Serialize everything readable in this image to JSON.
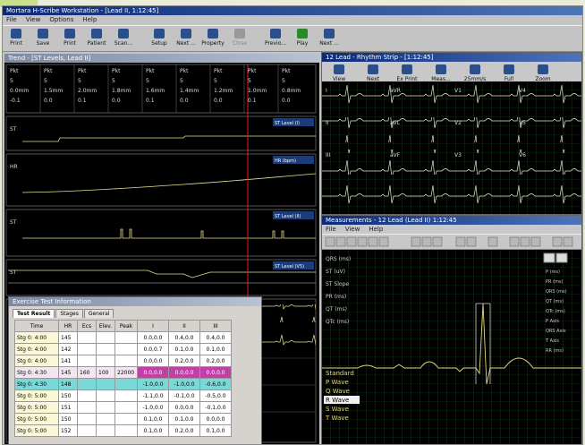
{
  "window": {
    "title": "Mortara H-Scribe Workstation - [Lead II, 1:12:45]",
    "menu": [
      "File",
      "View",
      "Options",
      "Help"
    ],
    "toolbar": [
      "Print",
      "Save",
      "Print",
      "Patient",
      "Scan...",
      "Setup",
      "Next ...",
      "Property",
      "Close",
      "Previo...",
      "Play",
      "Next ..."
    ]
  },
  "trend_pane": {
    "title": "Trend - [ST Levels, Lead II]",
    "columns": [
      [
        "Pkt",
        "5",
        "0.0mm",
        "-0.1"
      ],
      [
        "Pkt",
        "5",
        "1.5mm",
        "0.0"
      ],
      [
        "Pkt",
        "5",
        "2.0mm",
        "0.1"
      ],
      [
        "Pkt",
        "5",
        "1.8mm",
        "0.0"
      ],
      [
        "Pkt",
        "5",
        "1.6mm",
        "0.1"
      ],
      [
        "Pkt",
        "5",
        "1.4mm",
        "0.0"
      ],
      [
        "Pkt",
        "5",
        "1.2mm",
        "0.0"
      ],
      [
        "Pkt",
        "5",
        "1.0mm",
        "0.1"
      ],
      [
        "Pkt",
        "5",
        "0.8mm",
        "0.0"
      ]
    ],
    "panel_tags": [
      "ST Level (I)",
      "HR (bpm)",
      "ST Level (II)",
      "ST Level (V5)"
    ],
    "panel_labels": [
      "ST",
      "HR",
      "ST",
      "ST"
    ]
  },
  "rhythm_window": {
    "title": "12 Lead - Rhythm Strip - [1:12:45]",
    "toolbar": [
      "View",
      "Next",
      "Ex Print",
      "Meas...",
      "25mm/s",
      "Full",
      "Zoom"
    ],
    "leads": [
      "I",
      "aVR",
      "V1",
      "V4",
      "II",
      "aVL",
      "V2",
      "V5",
      "III",
      "aVF",
      "V3",
      "V6"
    ]
  },
  "measurements_window": {
    "title": "Measurements - 12 Lead (Lead II) 1:12:45",
    "menu": [
      "File",
      "View",
      "Help"
    ],
    "left_labels": [
      "QRS (ms)",
      "ST (uV)",
      "ST Slope",
      "PR (ms)",
      "QT (ms)",
      "QTc (ms)"
    ],
    "wave_list": [
      "Standard",
      "P Wave",
      "Q Wave",
      "R Wave",
      "S Wave",
      "T Wave"
    ],
    "selected_wave": 3,
    "right_labels": [
      "P (ms)",
      "PR (ms)",
      "QRS (ms)",
      "QT (ms)",
      "QTc (ms)",
      "P Axis",
      "QRS Axis",
      "T Axis",
      "RR (ms)"
    ]
  },
  "episode_dialog": {
    "title": "Exercise Test Information",
    "tabs": [
      "Test Result",
      "Stages",
      "General"
    ],
    "columns": [
      "Time",
      "HR",
      "Ecs",
      "Elev.",
      "Peak",
      "I",
      "II",
      "III"
    ],
    "rows": [
      [
        "Stg 0: 4:00",
        "145",
        null,
        null,
        null,
        "0.0,0.0",
        "0.4,0.0",
        "0.4,0.0"
      ],
      [
        "Stg 0: 4:00",
        "142",
        null,
        null,
        null,
        "0.0,0.7",
        "0.1,0.0",
        "0.1,0.0"
      ],
      [
        "Stg 0: 4:00",
        "141",
        null,
        null,
        null,
        "0.0,0.0",
        "0.2,0.0",
        "0.2,0.0"
      ],
      [
        "Stg 0: 4:30",
        "145",
        "160",
        "100",
        "22000",
        "0.0,0.0",
        "0.0,0.0",
        "0.0,0.0"
      ],
      [
        "Stg 0: 4:30",
        "148",
        null,
        null,
        null,
        "-1.0,0.0",
        "-1.0,0.0",
        "-0.6,0.0"
      ],
      [
        "Stg 0: 5:00",
        "150",
        null,
        null,
        null,
        "-1.1,0.0",
        "-0.1,0.0",
        "-0.5,0.0"
      ],
      [
        "Stg 0: 5:00",
        "151",
        null,
        null,
        null,
        "-1.0,0.0",
        "0.0,0.0",
        "-0.1,0.0"
      ],
      [
        "Stg 0: 5:00",
        "150",
        null,
        null,
        null,
        "0.1,0.0",
        "0.1,0.0",
        "0.0,0.0"
      ],
      [
        "Stg 0: 5:00",
        "152",
        null,
        null,
        null,
        "0.1,0.0",
        "0.2,0.0",
        "0.1,0.0"
      ]
    ]
  }
}
